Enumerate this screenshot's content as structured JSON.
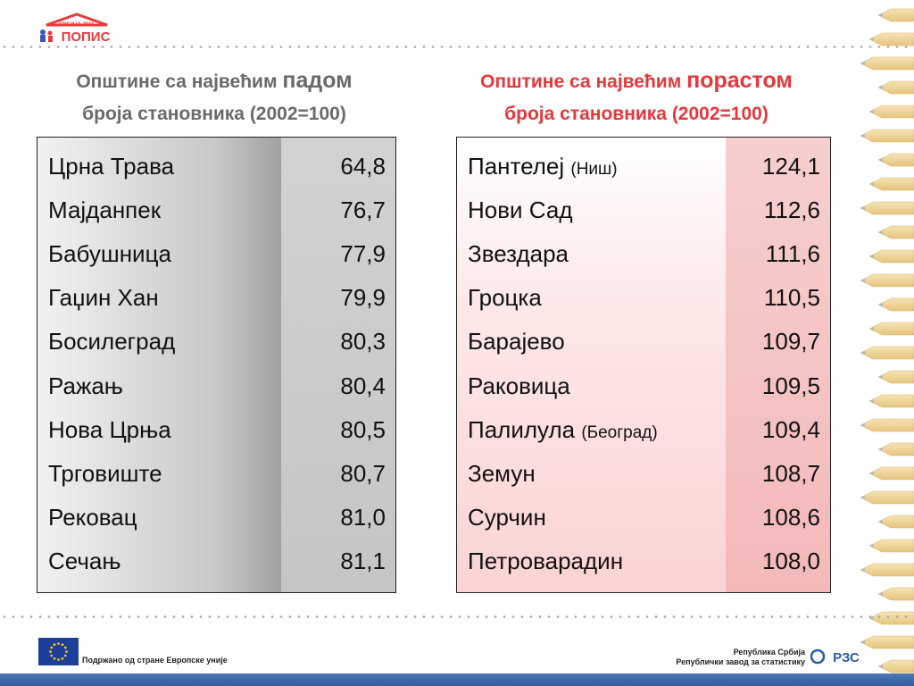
{
  "logo": {
    "small_text": "СРБИЈА 2011",
    "main_text": "ПОПИС"
  },
  "left_heading": {
    "line1_prefix": "Општине са највећим",
    "line1_emph": "падом",
    "line2": "броја становника (2002=100)"
  },
  "right_heading": {
    "line1_prefix": "Општине са највећим",
    "line1_emph": "порастом",
    "line2": "броја становника (2002=100)"
  },
  "decline_rows": [
    {
      "name": "Црна Трава",
      "note": "",
      "value": "64,8"
    },
    {
      "name": "Мајданпек",
      "note": "",
      "value": "76,7"
    },
    {
      "name": "Бабушница",
      "note": "",
      "value": "77,9"
    },
    {
      "name": "Гаџин Хан",
      "note": "",
      "value": "79,9"
    },
    {
      "name": "Босилеград",
      "note": "",
      "value": "80,3"
    },
    {
      "name": "Ражањ",
      "note": "",
      "value": "80,4"
    },
    {
      "name": "Нова Црња",
      "note": "",
      "value": "80,5"
    },
    {
      "name": "Трговиште",
      "note": "",
      "value": "80,7"
    },
    {
      "name": "Рековац",
      "note": "",
      "value": "81,0"
    },
    {
      "name": "Сечањ",
      "note": "",
      "value": "81,1"
    }
  ],
  "growth_rows": [
    {
      "name": "Пантелеј",
      "note": "(Ниш)",
      "value": "124,1"
    },
    {
      "name": "Нови Сад",
      "note": "",
      "value": "112,6"
    },
    {
      "name": "Звездара",
      "note": "",
      "value": "111,6"
    },
    {
      "name": "Гроцка",
      "note": "",
      "value": "110,5"
    },
    {
      "name": "Барајево",
      "note": "",
      "value": "109,7"
    },
    {
      "name": "Раковица",
      "note": "",
      "value": "109,5"
    },
    {
      "name": "Палилула",
      "note": "(Београд)",
      "value": "109,4"
    },
    {
      "name": "Земун",
      "note": "",
      "value": "108,7"
    },
    {
      "name": "Сурчин",
      "note": "",
      "value": "108,6"
    },
    {
      "name": "Петроварадин",
      "note": "",
      "value": "108,0"
    }
  ],
  "footer": {
    "eu_text": "Подржано од стране Европске уније",
    "rzs_line1": "Република Србија",
    "rzs_line2": "Републички завод за статистику",
    "rzs_logo_text": "РЗС"
  },
  "colors": {
    "left_heading": "#6a6a6a",
    "right_heading": "#e8373b",
    "footer_bar": "#315c9f"
  }
}
